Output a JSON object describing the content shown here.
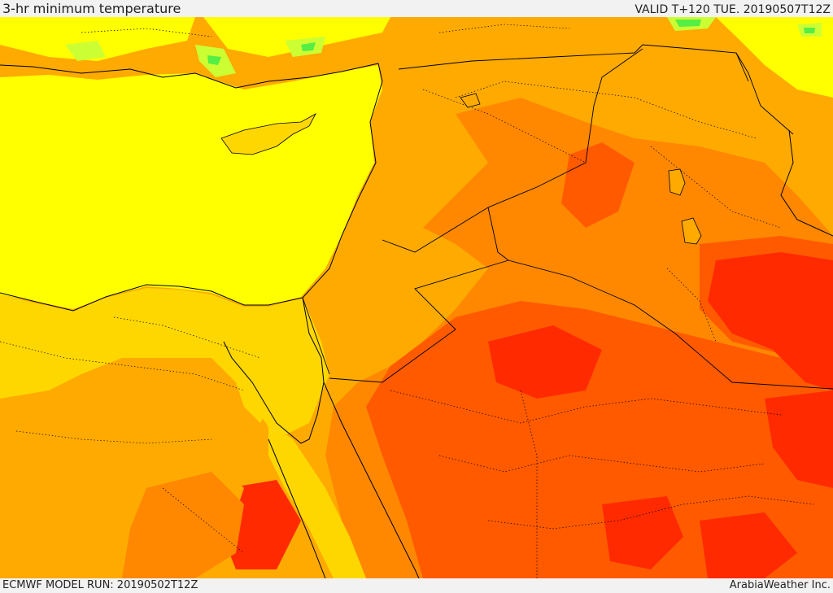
{
  "header": {
    "title": "3-hr minimum temperature",
    "valid": "VALID T+120 TUE. 20190507T12Z"
  },
  "footer": {
    "model_run": "ECMWF MODEL RUN: 20190502T12Z",
    "credit": "ArabiaWeather Inc."
  },
  "palette": {
    "sea_yellow": "#ffff00",
    "light_orange": "#ffd700",
    "orange": "#ffaa00",
    "dark_orange": "#ff8800",
    "red_orange": "#ff5a00",
    "red": "#ff2a00",
    "light_green": "#ccff33",
    "green": "#55ee44"
  }
}
